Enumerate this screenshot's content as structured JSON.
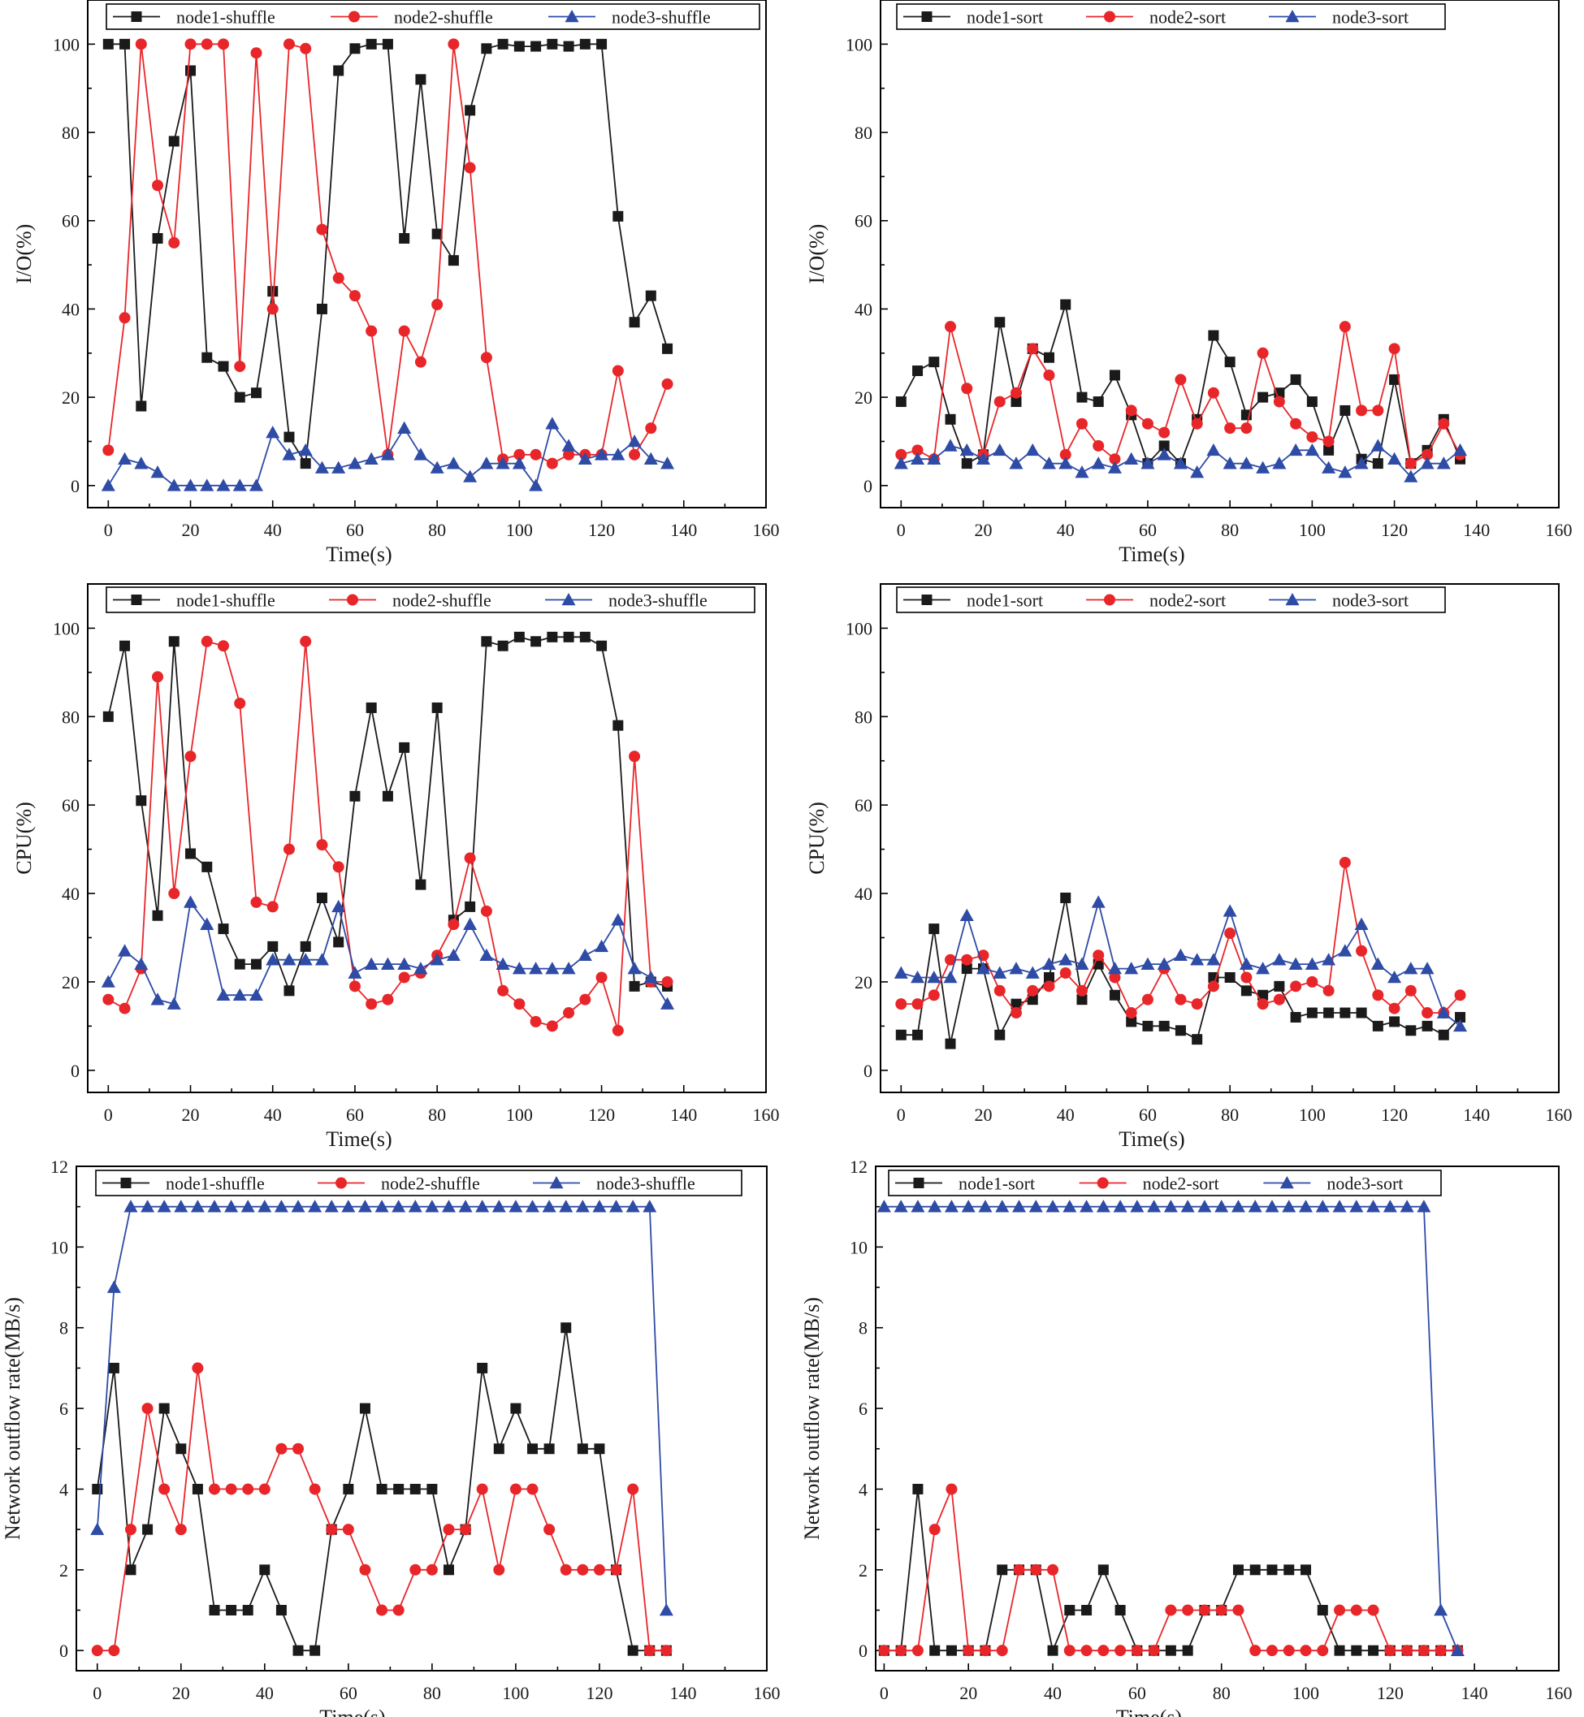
{
  "colors": {
    "node1": "#1a1a1a",
    "node2": "#e8262a",
    "node3": "#2e4ba6"
  },
  "chart_data": [
    {
      "id": "io-shuffle",
      "type": "line",
      "title": "",
      "xlabel": "Time(s)",
      "ylabel": "I/O(%)",
      "xlim": [
        -5,
        160
      ],
      "ylim": [
        -5,
        110
      ],
      "xticks": [
        0,
        20,
        40,
        60,
        80,
        100,
        120,
        140,
        160
      ],
      "yticks": [
        0,
        20,
        40,
        60,
        80,
        100
      ],
      "x": [
        0,
        4,
        8,
        12,
        16,
        20,
        24,
        28,
        32,
        36,
        40,
        44,
        48,
        52,
        56,
        60,
        64,
        68,
        72,
        76,
        80,
        84,
        88,
        92,
        96,
        100,
        104,
        108,
        112,
        116,
        120,
        124,
        128,
        132,
        136
      ],
      "series": [
        {
          "name": "node1-shuffle",
          "color": "node1",
          "marker": "square",
          "values": [
            100,
            100,
            18,
            56,
            78,
            94,
            29,
            27,
            20,
            21,
            44,
            11,
            5,
            40,
            94,
            99,
            100,
            100,
            56,
            92,
            57,
            51,
            85,
            99,
            100,
            99.5,
            99.5,
            100,
            99.5,
            100,
            100,
            61,
            37,
            43,
            31
          ]
        },
        {
          "name": "node2-shuffle",
          "color": "node2",
          "marker": "circle",
          "values": [
            8,
            38,
            100,
            68,
            55,
            100,
            100,
            100,
            27,
            98,
            40,
            100,
            99,
            58,
            47,
            43,
            35,
            7,
            35,
            28,
            41,
            100,
            72,
            29,
            6,
            7,
            7,
            5,
            7,
            7,
            7,
            26,
            7,
            13,
            23
          ]
        },
        {
          "name": "node3-shuffle",
          "color": "node3",
          "marker": "triangle",
          "values": [
            0,
            6,
            5,
            3,
            0,
            0,
            0,
            0,
            0,
            0,
            12,
            7,
            8,
            4,
            4,
            5,
            6,
            7,
            13,
            7,
            4,
            5,
            2,
            5,
            5,
            5,
            0,
            14,
            9,
            6,
            7,
            7,
            10,
            6,
            5
          ]
        }
      ]
    },
    {
      "id": "io-sort",
      "type": "line",
      "title": "",
      "xlabel": "Time(s)",
      "ylabel": "I/O(%)",
      "xlim": [
        -5,
        160
      ],
      "ylim": [
        -5,
        110
      ],
      "xticks": [
        0,
        20,
        40,
        60,
        80,
        100,
        120,
        140,
        160
      ],
      "yticks": [
        0,
        20,
        40,
        60,
        80,
        100
      ],
      "x": [
        0,
        4,
        8,
        12,
        16,
        20,
        24,
        28,
        32,
        36,
        40,
        44,
        48,
        52,
        56,
        60,
        64,
        68,
        72,
        76,
        80,
        84,
        88,
        92,
        96,
        100,
        104,
        108,
        112,
        116,
        120,
        124,
        128,
        132,
        136
      ],
      "series": [
        {
          "name": "node1-sort",
          "color": "node1",
          "marker": "square",
          "values": [
            19,
            26,
            28,
            15,
            5,
            7,
            37,
            19,
            31,
            29,
            41,
            20,
            19,
            25,
            16,
            5,
            9,
            5,
            15,
            34,
            28,
            16,
            20,
            21,
            24,
            19,
            8,
            17,
            6,
            5,
            24,
            5,
            8,
            15,
            6
          ]
        },
        {
          "name": "node2-sort",
          "color": "node2",
          "marker": "circle",
          "values": [
            7,
            8,
            6,
            36,
            22,
            7,
            19,
            21,
            31,
            25,
            7,
            14,
            9,
            6,
            17,
            14,
            12,
            24,
            14,
            21,
            13,
            13,
            30,
            19,
            14,
            11,
            10,
            36,
            17,
            17,
            31,
            5,
            7,
            14,
            7
          ]
        },
        {
          "name": "node3-sort",
          "color": "node3",
          "marker": "triangle",
          "values": [
            5,
            6,
            6,
            9,
            8,
            6,
            8,
            5,
            8,
            5,
            5,
            3,
            5,
            4,
            6,
            5,
            7,
            5,
            3,
            8,
            5,
            5,
            4,
            5,
            8,
            8,
            4,
            3,
            5,
            9,
            6,
            2,
            5,
            5,
            8
          ]
        }
      ]
    },
    {
      "id": "cpu-shuffle",
      "type": "line",
      "title": "",
      "xlabel": "Time(s)",
      "ylabel": "CPU(%)",
      "xlim": [
        -5,
        160
      ],
      "ylim": [
        -5,
        110
      ],
      "xticks": [
        0,
        20,
        40,
        60,
        80,
        100,
        120,
        140,
        160
      ],
      "yticks": [
        0,
        20,
        40,
        60,
        80,
        100
      ],
      "x": [
        0,
        4,
        8,
        12,
        16,
        20,
        24,
        28,
        32,
        36,
        40,
        44,
        48,
        52,
        56,
        60,
        64,
        68,
        72,
        76,
        80,
        84,
        88,
        92,
        96,
        100,
        104,
        108,
        112,
        116,
        120,
        124,
        128,
        132,
        136
      ],
      "series": [
        {
          "name": "node1-shuffle",
          "color": "node1",
          "marker": "square",
          "values": [
            80,
            96,
            61,
            35,
            97,
            49,
            46,
            32,
            24,
            24,
            28,
            18,
            28,
            39,
            29,
            62,
            82,
            62,
            73,
            42,
            82,
            34,
            37,
            97,
            96,
            98,
            97,
            98,
            98,
            98,
            96,
            78,
            19,
            20,
            19
          ]
        },
        {
          "name": "node2-shuffle",
          "color": "node2",
          "marker": "circle",
          "values": [
            16,
            14,
            23,
            89,
            40,
            71,
            97,
            96,
            83,
            38,
            37,
            50,
            97,
            51,
            46,
            19,
            15,
            16,
            21,
            22,
            26,
            33,
            48,
            36,
            18,
            15,
            11,
            10,
            13,
            16,
            21,
            9,
            71,
            20,
            20
          ]
        },
        {
          "name": "node3-shuffle",
          "color": "node3",
          "marker": "triangle",
          "values": [
            20,
            27,
            24,
            16,
            15,
            38,
            33,
            17,
            17,
            17,
            25,
            25,
            25,
            25,
            37,
            22,
            24,
            24,
            24,
            23,
            25,
            26,
            33,
            26,
            24,
            23,
            23,
            23,
            23,
            26,
            28,
            34,
            23,
            21,
            15
          ]
        }
      ]
    },
    {
      "id": "cpu-sort",
      "type": "line",
      "title": "",
      "xlabel": "Time(s)",
      "ylabel": "CPU(%)",
      "xlim": [
        -5,
        160
      ],
      "ylim": [
        -5,
        110
      ],
      "xticks": [
        0,
        20,
        40,
        60,
        80,
        100,
        120,
        140,
        160
      ],
      "yticks": [
        0,
        20,
        40,
        60,
        80,
        100
      ],
      "x": [
        0,
        4,
        8,
        12,
        16,
        20,
        24,
        28,
        32,
        36,
        40,
        44,
        48,
        52,
        56,
        60,
        64,
        68,
        72,
        76,
        80,
        84,
        88,
        92,
        96,
        100,
        104,
        108,
        112,
        116,
        120,
        124,
        128,
        132,
        136
      ],
      "series": [
        {
          "name": "node1-sort",
          "color": "node1",
          "marker": "square",
          "values": [
            8,
            8,
            32,
            6,
            23,
            23,
            8,
            15,
            16,
            21,
            39,
            16,
            24,
            17,
            11,
            10,
            10,
            9,
            7,
            21,
            21,
            18,
            17,
            19,
            12,
            13,
            13,
            13,
            13,
            10,
            11,
            9,
            10,
            8,
            12
          ]
        },
        {
          "name": "node2-sort",
          "color": "node2",
          "marker": "circle",
          "values": [
            15,
            15,
            17,
            25,
            25,
            26,
            18,
            13,
            18,
            19,
            22,
            18,
            26,
            21,
            13,
            16,
            23,
            16,
            15,
            19,
            31,
            21,
            15,
            16,
            19,
            20,
            18,
            47,
            27,
            17,
            14,
            18,
            13,
            13,
            17
          ]
        },
        {
          "name": "node3-sort",
          "color": "node3",
          "marker": "triangle",
          "values": [
            22,
            21,
            21,
            21,
            35,
            23,
            22,
            23,
            22,
            24,
            25,
            24,
            38,
            23,
            23,
            24,
            24,
            26,
            25,
            25,
            36,
            24,
            23,
            25,
            24,
            24,
            25,
            27,
            33,
            24,
            21,
            23,
            23,
            13,
            10
          ]
        }
      ]
    },
    {
      "id": "net-shuffle",
      "type": "line",
      "title": "",
      "xlabel": "Time(s)",
      "ylabel": "Network outflow rate(MB/s)",
      "xlim": [
        -5,
        160
      ],
      "ylim": [
        -0.5,
        12
      ],
      "xticks": [
        0,
        20,
        40,
        60,
        80,
        100,
        120,
        140,
        160
      ],
      "yticks": [
        0,
        2,
        4,
        6,
        8,
        10,
        12
      ],
      "x": [
        0,
        4,
        8,
        12,
        16,
        20,
        24,
        28,
        32,
        36,
        40,
        44,
        48,
        52,
        56,
        60,
        64,
        68,
        72,
        76,
        80,
        84,
        88,
        92,
        96,
        100,
        104,
        108,
        112,
        116,
        120,
        124,
        128,
        132,
        136
      ],
      "series": [
        {
          "name": "node1-shuffle",
          "color": "node1",
          "marker": "square",
          "values": [
            4,
            7,
            2,
            3,
            6,
            5,
            4,
            1,
            1,
            1,
            2,
            1,
            0,
            0,
            3,
            4,
            6,
            4,
            4,
            4,
            4,
            2,
            3,
            7,
            5,
            6,
            5,
            5,
            8,
            5,
            5,
            2,
            0,
            0,
            0
          ]
        },
        {
          "name": "node2-shuffle",
          "color": "node2",
          "marker": "circle",
          "values": [
            0,
            0,
            3,
            6,
            4,
            3,
            7,
            4,
            4,
            4,
            4,
            5,
            5,
            4,
            3,
            3,
            2,
            1,
            1,
            2,
            2,
            3,
            3,
            4,
            2,
            4,
            4,
            3,
            2,
            2,
            2,
            2,
            4,
            0,
            0
          ]
        },
        {
          "name": "node3-shuffle",
          "color": "node3",
          "marker": "triangle",
          "values": [
            3,
            9,
            11,
            11,
            11,
            11,
            11,
            11,
            11,
            11,
            11,
            11,
            11,
            11,
            11,
            11,
            11,
            11,
            11,
            11,
            11,
            11,
            11,
            11,
            11,
            11,
            11,
            11,
            11,
            11,
            11,
            11,
            11,
            11,
            1
          ]
        }
      ]
    },
    {
      "id": "net-sort",
      "type": "line",
      "title": "",
      "xlabel": "Time(s)",
      "ylabel": "Network outflow rate(MB/s)",
      "xlim": [
        -2,
        160
      ],
      "ylim": [
        -0.5,
        12
      ],
      "xticks": [
        0,
        20,
        40,
        60,
        80,
        100,
        120,
        140,
        160
      ],
      "yticks": [
        0,
        2,
        4,
        6,
        8,
        10,
        12
      ],
      "x": [
        0,
        4,
        8,
        12,
        16,
        20,
        24,
        28,
        32,
        36,
        40,
        44,
        48,
        52,
        56,
        60,
        64,
        68,
        72,
        76,
        80,
        84,
        88,
        92,
        96,
        100,
        104,
        108,
        112,
        116,
        120,
        124,
        128,
        132,
        136
      ],
      "series": [
        {
          "name": "node1-sort",
          "color": "node1",
          "marker": "square",
          "values": [
            0,
            0,
            4,
            0,
            0,
            0,
            0,
            2,
            2,
            2,
            0,
            1,
            1,
            2,
            1,
            0,
            0,
            0,
            0,
            1,
            1,
            2,
            2,
            2,
            2,
            2,
            1,
            0,
            0,
            0,
            0,
            0,
            0,
            0,
            0
          ]
        },
        {
          "name": "node2-sort",
          "color": "node2",
          "marker": "circle",
          "values": [
            0,
            0,
            0,
            3,
            4,
            0,
            0,
            0,
            2,
            2,
            2,
            0,
            0,
            0,
            0,
            0,
            0,
            1,
            1,
            1,
            1,
            1,
            0,
            0,
            0,
            0,
            0,
            1,
            1,
            1,
            0,
            0,
            0,
            0,
            0
          ]
        },
        {
          "name": "node3-sort",
          "color": "node3",
          "marker": "triangle",
          "values": [
            11,
            11,
            11,
            11,
            11,
            11,
            11,
            11,
            11,
            11,
            11,
            11,
            11,
            11,
            11,
            11,
            11,
            11,
            11,
            11,
            11,
            11,
            11,
            11,
            11,
            11,
            11,
            11,
            11,
            11,
            11,
            11,
            11,
            1,
            0
          ]
        }
      ]
    }
  ]
}
